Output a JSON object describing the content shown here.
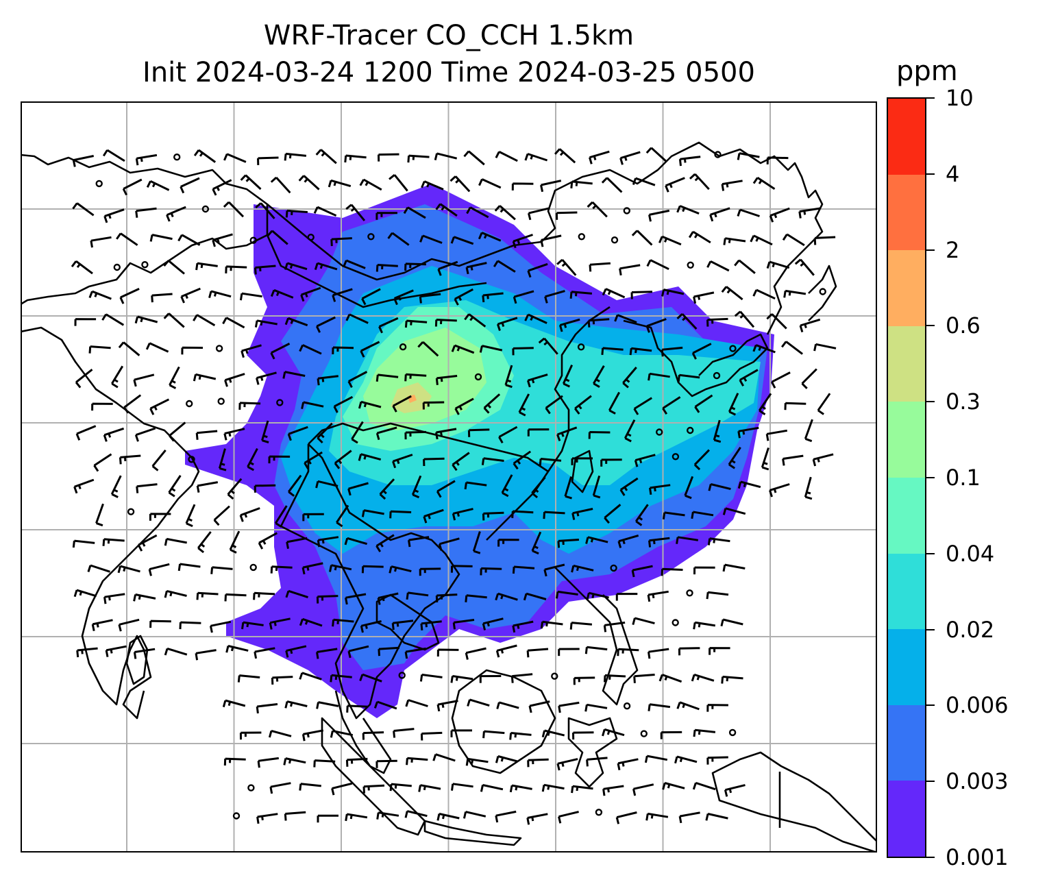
{
  "title": {
    "line1": "WRF-Tracer CO_CCH 1.5km",
    "line2": "Init 2024-03-24 1200 Time 2024-03-25 0500"
  },
  "colorbar": {
    "unit": "ppm",
    "ticks": [
      "0.001",
      "0.003",
      "0.006",
      "0.02",
      "0.04",
      "0.1",
      "0.3",
      "0.6",
      "2",
      "4",
      "10"
    ],
    "colors": [
      "#6428fa",
      "#3574f5",
      "#05b0ea",
      "#2fded9",
      "#66f8c2",
      "#97fb9b",
      "#cee183",
      "#ffae60",
      "#ff703f",
      "#fb2b14"
    ]
  },
  "map": {
    "gridlines": {
      "color": "#b0b0b0",
      "vertical_count": 7,
      "horizontal_count": 6
    },
    "layers": [
      "co-tracer-concentration",
      "coastlines",
      "wind-barbs",
      "calm-wind-circles"
    ]
  }
}
